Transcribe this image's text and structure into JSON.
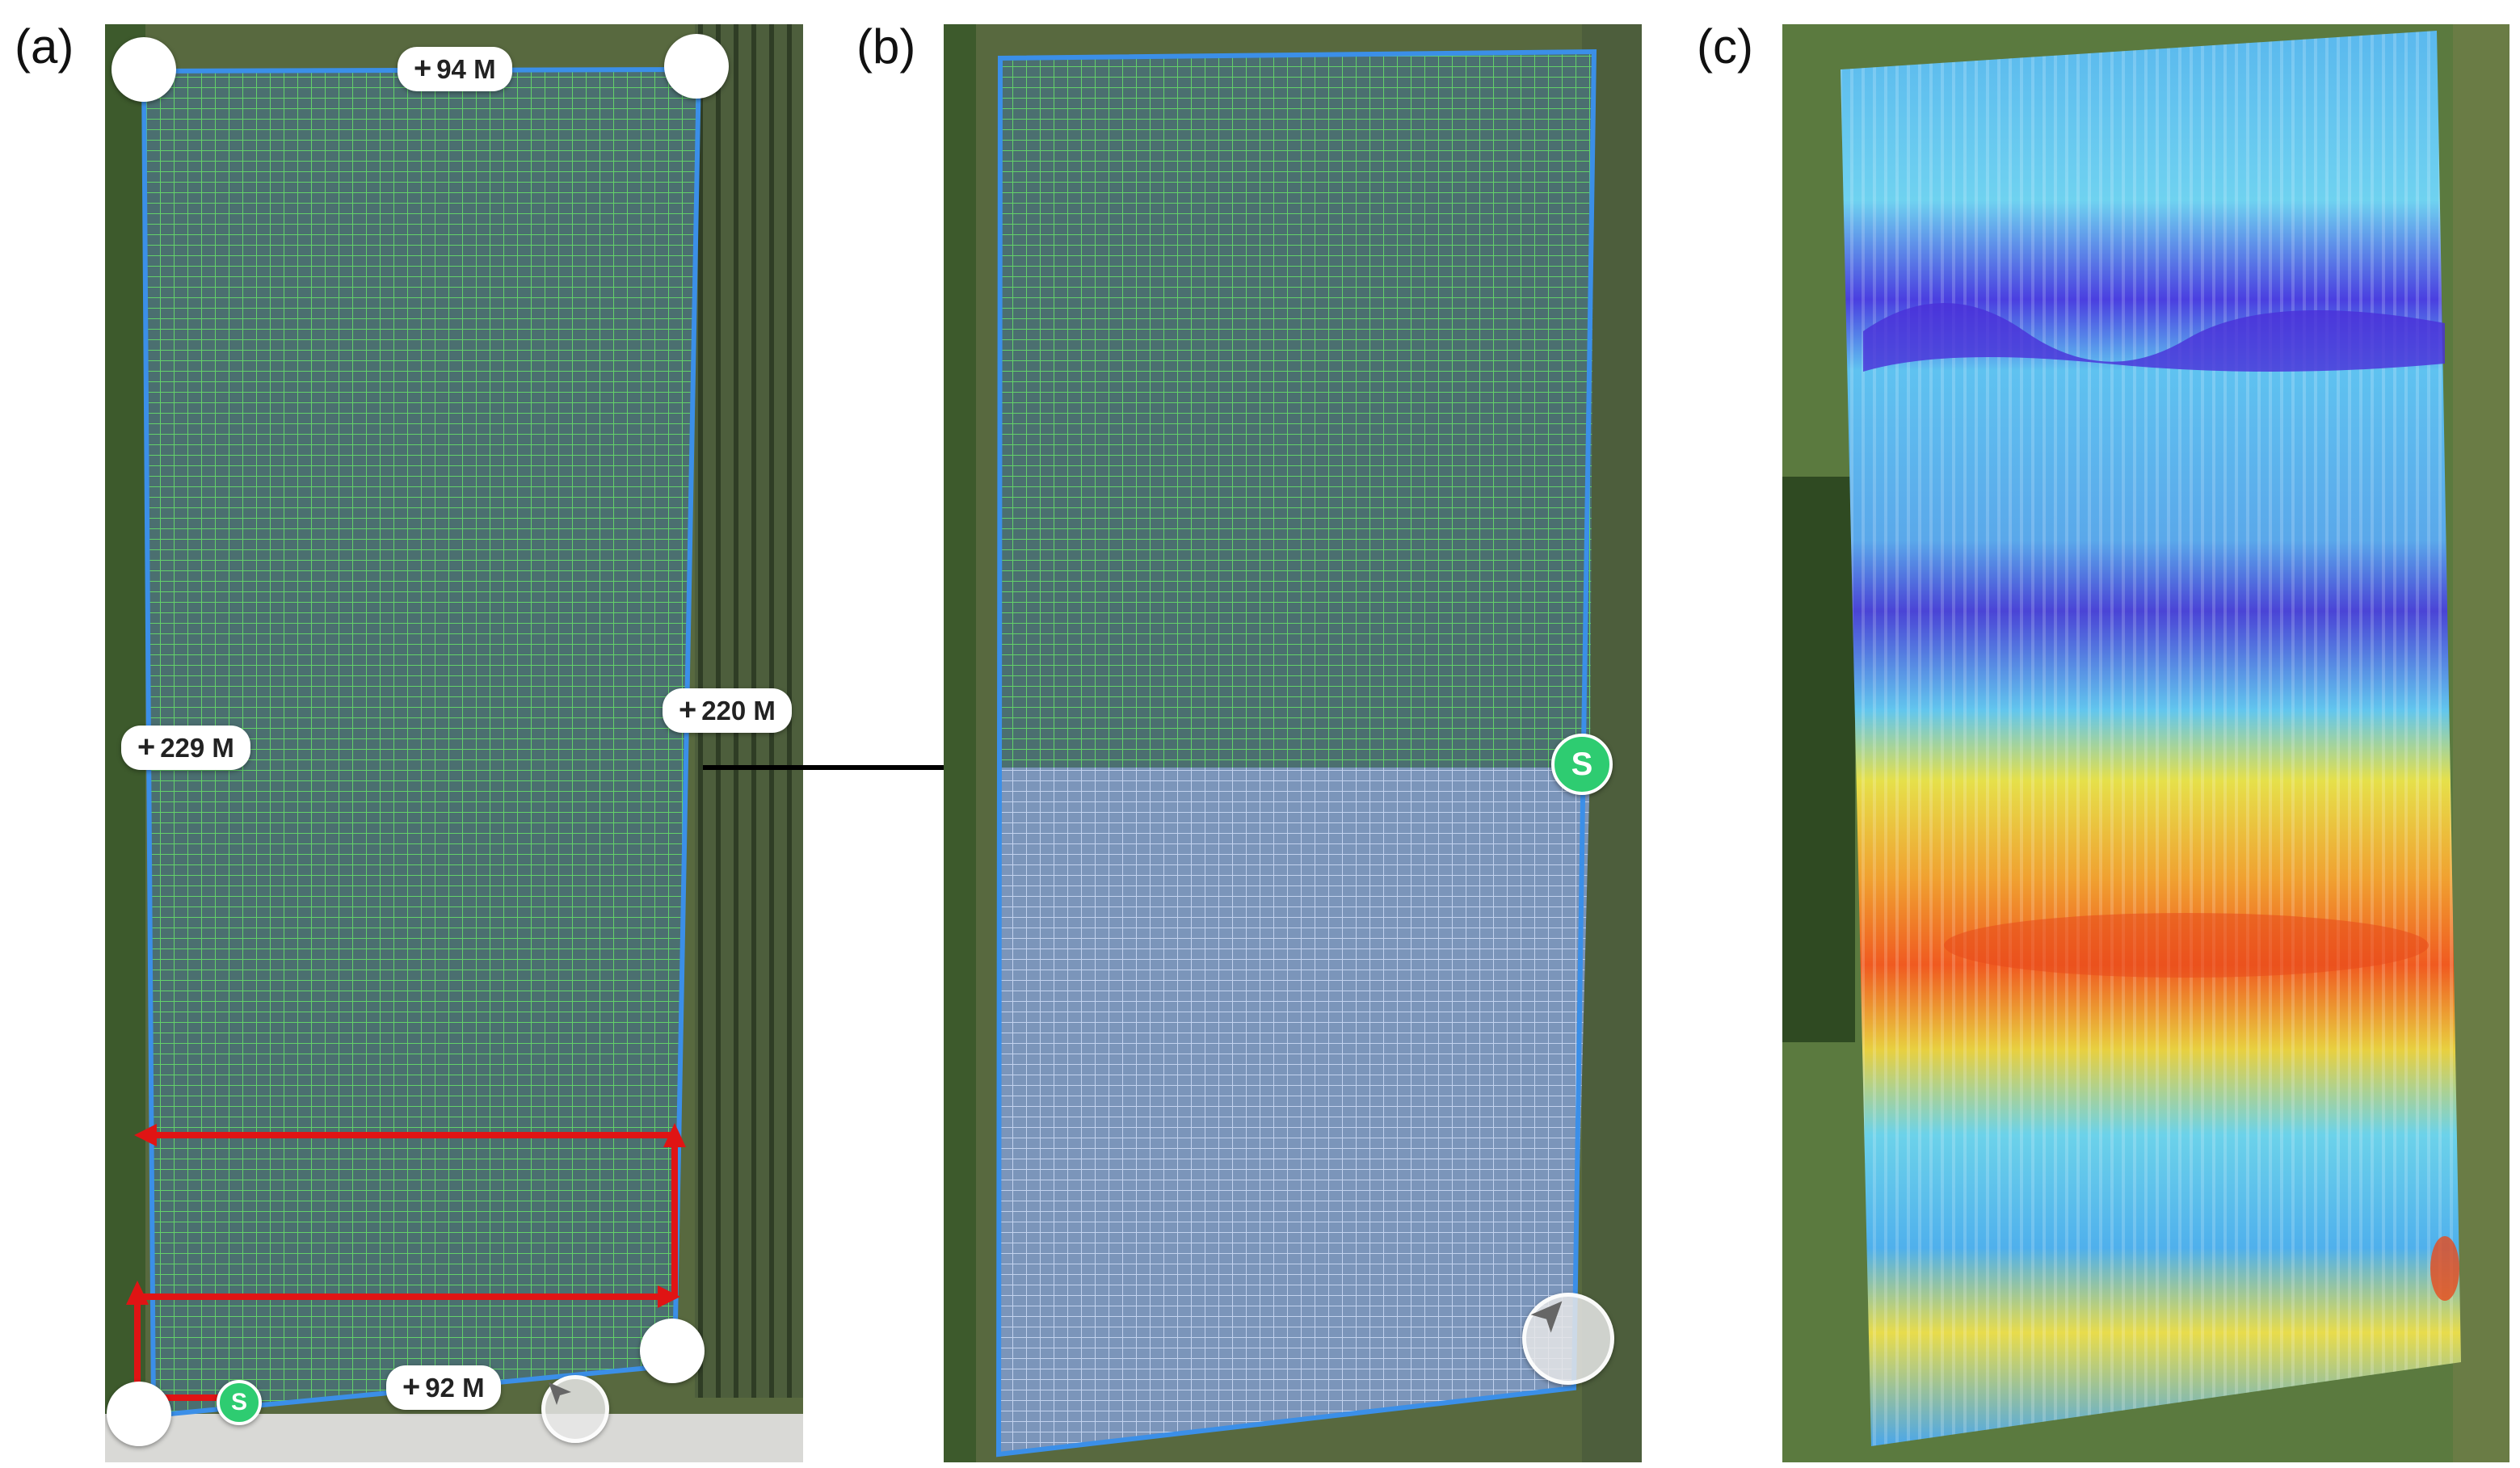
{
  "panels": {
    "a": {
      "label": "(a)"
    },
    "b": {
      "label": "(b)"
    },
    "c": {
      "label": "(c)"
    }
  },
  "dimensions": {
    "top": "94 M",
    "left": "229 M",
    "right": "220 M",
    "bottom": "92 M"
  },
  "start_marker": {
    "label": "S"
  },
  "icons": {
    "plus": "plus-icon",
    "navigate": "navigation-arrow-icon",
    "handle": "corner-handle-icon"
  },
  "colors": {
    "grid_line": "#5fd35f",
    "boundary": "#3b8fe8",
    "flight_path": "#e01414",
    "start_green": "#2ecc71",
    "connector": "#000000",
    "field": "#4f6a58",
    "covered_overlay": "#8fb0e0"
  }
}
